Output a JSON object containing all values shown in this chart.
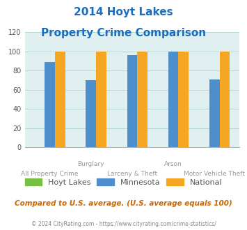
{
  "title_line1": "2014 Hoyt Lakes",
  "title_line2": "Property Crime Comparison",
  "cat_labels_top": [
    "",
    "Burglary",
    "",
    "Arson",
    ""
  ],
  "cat_labels_bot": [
    "All Property Crime",
    "",
    "Larceny & Theft",
    "",
    "Motor Vehicle Theft"
  ],
  "hoyt_lakes": [
    0,
    0,
    0,
    0,
    0
  ],
  "minnesota": [
    89,
    70,
    96,
    100,
    71
  ],
  "national": [
    100,
    100,
    100,
    100,
    100
  ],
  "color_hoyt": "#78c041",
  "color_minnesota": "#4d8fcc",
  "color_national": "#f5a623",
  "ylim": [
    0,
    120
  ],
  "yticks": [
    0,
    20,
    40,
    60,
    80,
    100,
    120
  ],
  "title_color": "#1a6ebd",
  "bg_color": "#e0f0f0",
  "legend_labels": [
    "Hoyt Lakes",
    "Minnesota",
    "National"
  ],
  "footnote1": "Compared to U.S. average. (U.S. average equals 100)",
  "footnote2": "© 2024 CityRating.com - https://www.cityrating.com/crime-statistics/",
  "footnote1_color": "#cc6600",
  "footnote2_color": "#888888",
  "bar_width": 0.25,
  "grid_color": "#b8d8d8"
}
